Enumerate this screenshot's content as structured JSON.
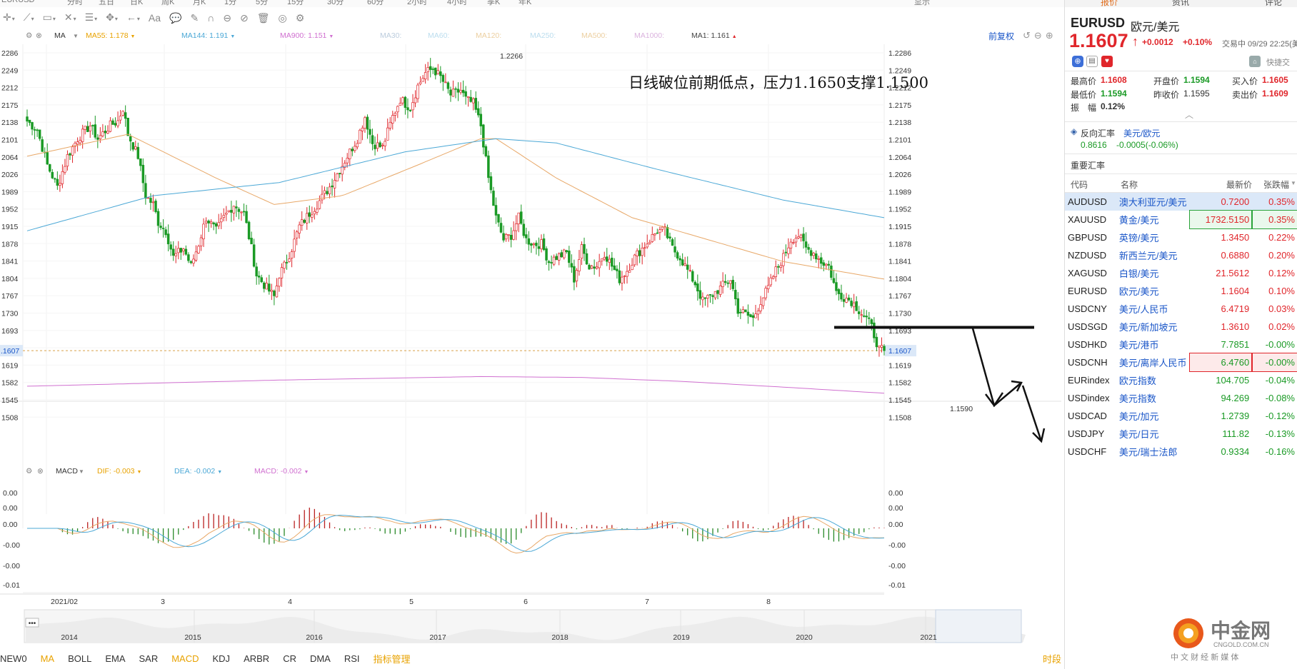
{
  "top_strip": [
    "EURUSD",
    "分时",
    "五日",
    "日K",
    "周K",
    "月K",
    "1分",
    "5分",
    "15分",
    "30分",
    "60分",
    "2小时",
    "4小时",
    "季K",
    "年K",
    "显示"
  ],
  "toolbar_icons": [
    "crosshair-icon",
    "line-tool-icon",
    "rect-tool-icon",
    "fib-tool-icon",
    "channel-tool-icon",
    "move-tool-icon",
    "arrow-tool-icon",
    "text-tool-icon",
    "comment-tool-icon",
    "pen-icon",
    "magnet-icon",
    "link-icon",
    "hide-icon",
    "delete-icon",
    "eye-icon",
    "settings-icon"
  ],
  "toolbar_text_label": "Aa",
  "ma_legend": {
    "name": "MA",
    "ma55": "MA55: 1.178",
    "ma144": "MA144: 1.191",
    "ma900": "MA900: 1.151",
    "ma30": "MA30:",
    "ma60": "MA60:",
    "ma120": "MA120:",
    "ma250": "MA250:",
    "ma500": "MA500:",
    "ma1000": "MA1000:",
    "ma1": "MA1: 1.161"
  },
  "macd_legend": {
    "name": "MACD",
    "dif": "DIF: -0.003",
    "dea": "DEA: -0.002",
    "macd": "MACD: -0.002"
  },
  "adjust_label": "前复权",
  "annotation": "日线破位前期低点，压力1.1650支撑1.1500",
  "price_axis": [
    "1.2286",
    "1.2249",
    "1.2212",
    "1.2175",
    "1.2138",
    "1.2101",
    "1.2064",
    "1.2026",
    "1.1989",
    "1.1952",
    "1.1915",
    "1.1878",
    "1.1841",
    "1.1804",
    "1.1767",
    "1.1730",
    "1.1693",
    "1.1656",
    "1.1619",
    "1.1582",
    "1.1545",
    "1.1508"
  ],
  "price_axis_left": [
    "2286",
    "2249",
    "2212",
    "2175",
    "2138",
    "2101",
    "2064",
    "2026",
    "1989",
    "1952",
    "1915",
    "1878",
    "1841",
    "1804",
    "1767",
    "1730",
    "1693",
    "1656",
    "1619",
    "1582",
    "1545",
    "1508"
  ],
  "current_price": "1.1607",
  "current_price_left": ".1607",
  "high_label": "1.2266",
  "low_label": "1.1590",
  "macd_axis": [
    "0.00",
    "0.00",
    "0.00",
    "-0.00",
    "-0.00",
    "-0.01"
  ],
  "macd_axis_left": [
    "0.00",
    "0.00",
    "0.00",
    "-0.00",
    "-0.00",
    "-0.01"
  ],
  "time_axis": [
    "2021/02",
    "3",
    "4",
    "5",
    "6",
    "7",
    "8",
    "9"
  ],
  "nav_years": [
    "2014",
    "2015",
    "2016",
    "2017",
    "2018",
    "2019",
    "2020",
    "2021"
  ],
  "nav_menu": "•••",
  "indicators": [
    "NEW0",
    "MA",
    "BOLL",
    "EMA",
    "SAR",
    "MACD",
    "KDJ",
    "ARBR",
    "CR",
    "DMA",
    "RSI",
    "指标管理"
  ],
  "shiduan": "时段",
  "right_panel": {
    "tabs": [
      "报价",
      "资讯",
      "评论"
    ],
    "symbol": "EURUSD",
    "symbol_name": "欧元/美元",
    "price": "1.1607",
    "arrow": "↑",
    "change": "+0.0012",
    "change_pct": "+0.10%",
    "trade_time": "交易中 09/29 22:25(美",
    "quick_trade": "快捷交",
    "stats": [
      {
        "label": "最高价",
        "value": "1.1608"
      },
      {
        "label": "开盘价",
        "value": "1.1594"
      },
      {
        "label": "买入价",
        "value": "1.1605"
      },
      {
        "label": "最低价",
        "value": "1.1594"
      },
      {
        "label": "昨收价",
        "value": "1.1595"
      },
      {
        "label": "卖出价",
        "value": "1.1609"
      },
      {
        "label": "振　幅",
        "value": "0.12%"
      }
    ],
    "reverse": {
      "title": "反向汇率",
      "pair": "美元/欧元",
      "value": "0.8616",
      "change": "-0.0005(-0.06%)"
    },
    "major_title": "重要汇率",
    "table_headers": [
      "代码",
      "名称",
      "最新价",
      "张跌幅"
    ],
    "rows": [
      {
        "code": "AUDUSD",
        "name": "澳大利亚元/美元",
        "price": "0.7200",
        "chg": "0.35%",
        "dir": "up"
      },
      {
        "code": "XAUUSD",
        "name": "黄金/美元",
        "price": "1732.5150",
        "chg": "0.35%",
        "dir": "up"
      },
      {
        "code": "GBPUSD",
        "name": "英镑/美元",
        "price": "1.3450",
        "chg": "0.22%",
        "dir": "up"
      },
      {
        "code": "NZDUSD",
        "name": "新西兰元/美元",
        "price": "0.6880",
        "chg": "0.20%",
        "dir": "up"
      },
      {
        "code": "XAGUSD",
        "name": "白银/美元",
        "price": "21.5612",
        "chg": "0.12%",
        "dir": "up"
      },
      {
        "code": "EURUSD",
        "name": "欧元/美元",
        "price": "1.1604",
        "chg": "0.10%",
        "dir": "up"
      },
      {
        "code": "USDCNY",
        "name": "美元/人民币",
        "price": "6.4719",
        "chg": "0.03%",
        "dir": "up"
      },
      {
        "code": "USDSGD",
        "name": "美元/新加坡元",
        "price": "1.3610",
        "chg": "0.02%",
        "dir": "up"
      },
      {
        "code": "USDHKD",
        "name": "美元/港币",
        "price": "7.7851",
        "chg": "-0.00%",
        "dir": "down"
      },
      {
        "code": "USDCNH",
        "name": "美元/离岸人民币",
        "price": "6.4760",
        "chg": "-0.00%",
        "dir": "down"
      },
      {
        "code": "EURindex",
        "name": "欧元指数",
        "price": "104.705",
        "chg": "-0.04%",
        "dir": "down"
      },
      {
        "code": "USDindex",
        "name": "美元指数",
        "price": "94.269",
        "chg": "-0.08%",
        "dir": "down"
      },
      {
        "code": "USDCAD",
        "name": "美元/加元",
        "price": "1.2739",
        "chg": "-0.12%",
        "dir": "down"
      },
      {
        "code": "USDJPY",
        "name": "美元/日元",
        "price": "111.82",
        "chg": "-0.13%",
        "dir": "down"
      },
      {
        "code": "USDCHF",
        "name": "美元/瑞士法郎",
        "price": "0.9334",
        "chg": "-0.16%",
        "dir": "down"
      }
    ],
    "logo": {
      "name": "中金网",
      "url": "CNGOLD.COM.CN",
      "tagline": "中 文 财 经 新 媒 体"
    }
  },
  "colors": {
    "up": "#e0262b",
    "down": "#1a9a25",
    "ma55": "#e8a868",
    "ma144": "#4ba8d6",
    "ma900": "#d070d0",
    "blue": "#1a56c8",
    "orange": "#e8a200"
  },
  "chart_data": {
    "type": "candlestick",
    "symbol": "EURUSD",
    "period": "daily",
    "ylim": [
      1.1495,
      1.2305
    ],
    "x_labels": [
      "2021/02",
      "3",
      "4",
      "5",
      "6",
      "7",
      "8",
      "9"
    ],
    "last": 1.1607,
    "high": 1.2266,
    "low": 1.159,
    "support": 1.15,
    "resistance": 1.165,
    "break_level": 1.166,
    "anchors": [
      [
        0,
        1.213
      ],
      [
        4,
        1.211
      ],
      [
        8,
        1.203
      ],
      [
        12,
        1.198
      ],
      [
        16,
        1.205
      ],
      [
        20,
        1.209
      ],
      [
        25,
        1.212
      ],
      [
        28,
        1.209
      ],
      [
        33,
        1.212
      ],
      [
        36,
        1.213
      ],
      [
        38,
        1.216
      ],
      [
        40,
        1.21
      ],
      [
        44,
        1.205
      ],
      [
        47,
        1.196
      ],
      [
        50,
        1.194
      ],
      [
        52,
        1.19
      ],
      [
        55,
        1.188
      ],
      [
        58,
        1.182
      ],
      [
        62,
        1.184
      ],
      [
        65,
        1.18
      ],
      [
        68,
        1.185
      ],
      [
        71,
        1.191
      ],
      [
        75,
        1.188
      ],
      [
        78,
        1.191
      ],
      [
        82,
        1.194
      ],
      [
        86,
        1.192
      ],
      [
        89,
        1.184
      ],
      [
        91,
        1.178
      ],
      [
        95,
        1.175
      ],
      [
        98,
        1.173
      ],
      [
        100,
        1.178
      ],
      [
        102,
        1.18
      ],
      [
        105,
        1.184
      ],
      [
        108,
        1.189
      ],
      [
        112,
        1.192
      ],
      [
        115,
        1.194
      ],
      [
        120,
        1.198
      ],
      [
        125,
        1.203
      ],
      [
        128,
        1.206
      ],
      [
        131,
        1.209
      ],
      [
        134,
        1.214
      ],
      [
        137,
        1.208
      ],
      [
        141,
        1.207
      ],
      [
        145,
        1.214
      ],
      [
        148,
        1.218
      ],
      [
        152,
        1.216
      ],
      [
        155,
        1.221
      ],
      [
        158,
        1.224
      ],
      [
        161,
        1.225
      ],
      [
        164,
        1.223
      ],
      [
        168,
        1.219
      ],
      [
        172,
        1.22
      ],
      [
        174,
        1.218
      ],
      [
        177,
        1.217
      ],
      [
        180,
        1.212
      ],
      [
        183,
        1.2
      ],
      [
        186,
        1.191
      ],
      [
        189,
        1.186
      ],
      [
        192,
        1.187
      ],
      [
        195,
        1.191
      ],
      [
        198,
        1.186
      ],
      [
        201,
        1.185
      ],
      [
        204,
        1.185
      ],
      [
        207,
        1.181
      ],
      [
        210,
        1.182
      ],
      [
        214,
        1.183
      ],
      [
        217,
        1.177
      ],
      [
        220,
        1.184
      ],
      [
        223,
        1.18
      ],
      [
        226,
        1.18
      ],
      [
        229,
        1.183
      ],
      [
        232,
        1.18
      ],
      [
        235,
        1.177
      ],
      [
        238,
        1.179
      ],
      [
        241,
        1.182
      ],
      [
        244,
        1.184
      ],
      [
        247,
        1.186
      ],
      [
        250,
        1.188
      ],
      [
        253,
        1.188
      ],
      [
        256,
        1.184
      ],
      [
        259,
        1.182
      ],
      [
        262,
        1.179
      ],
      [
        265,
        1.176
      ],
      [
        268,
        1.172
      ],
      [
        271,
        1.173
      ],
      [
        275,
        1.175
      ],
      [
        279,
        1.177
      ],
      [
        282,
        1.17
      ],
      [
        285,
        1.169
      ],
      [
        288,
        1.168
      ],
      [
        291,
        1.172
      ],
      [
        294,
        1.175
      ],
      [
        297,
        1.179
      ],
      [
        300,
        1.182
      ],
      [
        303,
        1.186
      ],
      [
        306,
        1.187
      ],
      [
        309,
        1.184
      ],
      [
        312,
        1.183
      ],
      [
        315,
        1.181
      ],
      [
        318,
        1.18
      ],
      [
        321,
        1.174
      ],
      [
        324,
        1.173
      ],
      [
        327,
        1.172
      ],
      [
        330,
        1.17
      ],
      [
        333,
        1.168
      ],
      [
        335,
        1.166
      ],
      [
        338,
        1.161
      ],
      [
        340,
        1.1607
      ]
    ],
    "ma": [
      {
        "name": "MA55",
        "value": 1.178,
        "points": [
          [
            0,
            1.205
          ],
          [
            40,
            1.21
          ],
          [
            75,
            1.2
          ],
          [
            98,
            1.194
          ],
          [
            125,
            1.196
          ],
          [
            155,
            1.203
          ],
          [
            180,
            1.209
          ],
          [
            186,
            1.209
          ],
          [
            210,
            1.2
          ],
          [
            240,
            1.191
          ],
          [
            270,
            1.186
          ],
          [
            300,
            1.181
          ],
          [
            340,
            1.177
          ]
        ]
      },
      {
        "name": "MA144",
        "value": 1.191,
        "points": [
          [
            0,
            1.188
          ],
          [
            50,
            1.196
          ],
          [
            100,
            1.199
          ],
          [
            150,
            1.206
          ],
          [
            186,
            1.209
          ],
          [
            210,
            1.208
          ],
          [
            250,
            1.202
          ],
          [
            300,
            1.195
          ],
          [
            340,
            1.191
          ]
        ]
      },
      {
        "name": "MA900",
        "value": 1.151,
        "points": [
          [
            0,
            1.1526
          ],
          [
            100,
            1.154
          ],
          [
            180,
            1.1548
          ],
          [
            220,
            1.1546
          ],
          [
            260,
            1.1537
          ],
          [
            300,
            1.1524
          ],
          [
            340,
            1.151
          ]
        ]
      }
    ],
    "macd": {
      "dif": -0.003,
      "dea": -0.002,
      "macd": -0.002,
      "ylim": [
        -0.013,
        0.011
      ]
    }
  }
}
